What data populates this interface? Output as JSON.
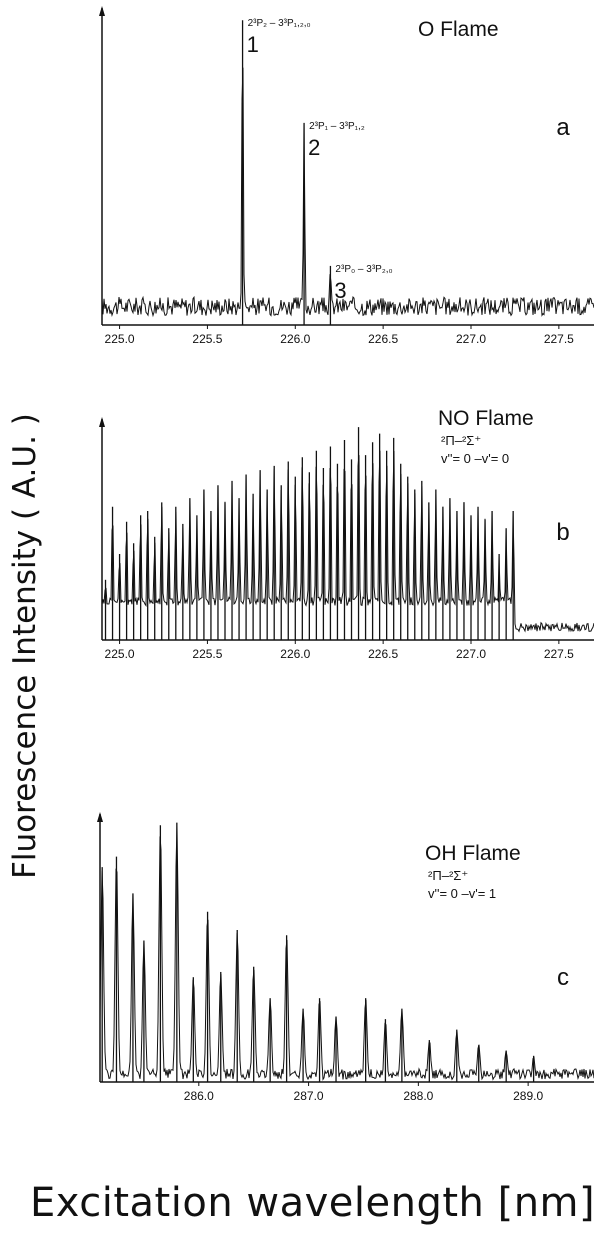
{
  "figure": {
    "ylabel": "Fluorescence Intensity ( A.U. )",
    "xlabel": "Excitation wavelength [nm]"
  },
  "chart_data": [
    {
      "type": "line",
      "panel_label": "a",
      "title": "O Flame",
      "annotation_lines": [],
      "xlim": [
        224.9,
        227.7
      ],
      "ylim": [
        0,
        100
      ],
      "x_ticks": [
        "225.0",
        "225.5",
        "226.0",
        "226.5",
        "227.0",
        "227.5"
      ],
      "baseline": 6,
      "noise": 3,
      "peaks": [
        {
          "x": 225.7,
          "y": 98,
          "label": "1",
          "assignment": "2³P₂ – 3³P₁,₂,₀"
        },
        {
          "x": 226.05,
          "y": 65,
          "label": "2",
          "assignment": "2³P₁ – 3³P₁,₂"
        },
        {
          "x": 226.2,
          "y": 19,
          "label": "3",
          "assignment": "2³P₀ – 3³P₂,₀"
        }
      ]
    },
    {
      "type": "line",
      "panel_label": "b",
      "title": "NO Flame",
      "annotation_lines": [
        "²Π–²Σ⁺",
        "v''= 0 –v'= 0"
      ],
      "xlim": [
        224.9,
        227.7
      ],
      "ylim": [
        0,
        100
      ],
      "x_ticks": [
        "225.0",
        "225.5",
        "226.0",
        "226.5",
        "227.0",
        "227.5"
      ],
      "baseline": 6,
      "noise": 2,
      "band_edge": 227.25,
      "peaks": [
        {
          "x": 224.92,
          "y": 28
        },
        {
          "x": 224.96,
          "y": 62
        },
        {
          "x": 225.0,
          "y": 40
        },
        {
          "x": 225.04,
          "y": 55
        },
        {
          "x": 225.08,
          "y": 45
        },
        {
          "x": 225.12,
          "y": 58
        },
        {
          "x": 225.16,
          "y": 60
        },
        {
          "x": 225.2,
          "y": 48
        },
        {
          "x": 225.24,
          "y": 64
        },
        {
          "x": 225.28,
          "y": 52
        },
        {
          "x": 225.32,
          "y": 62
        },
        {
          "x": 225.36,
          "y": 54
        },
        {
          "x": 225.4,
          "y": 66
        },
        {
          "x": 225.44,
          "y": 58
        },
        {
          "x": 225.48,
          "y": 70
        },
        {
          "x": 225.52,
          "y": 60
        },
        {
          "x": 225.56,
          "y": 72
        },
        {
          "x": 225.6,
          "y": 64
        },
        {
          "x": 225.64,
          "y": 74
        },
        {
          "x": 225.68,
          "y": 66
        },
        {
          "x": 225.72,
          "y": 77
        },
        {
          "x": 225.76,
          "y": 68
        },
        {
          "x": 225.8,
          "y": 79
        },
        {
          "x": 225.84,
          "y": 70
        },
        {
          "x": 225.88,
          "y": 81
        },
        {
          "x": 225.92,
          "y": 72
        },
        {
          "x": 225.96,
          "y": 83
        },
        {
          "x": 226.0,
          "y": 76
        },
        {
          "x": 226.04,
          "y": 85
        },
        {
          "x": 226.08,
          "y": 78
        },
        {
          "x": 226.12,
          "y": 88
        },
        {
          "x": 226.16,
          "y": 80
        },
        {
          "x": 226.2,
          "y": 90
        },
        {
          "x": 226.24,
          "y": 82
        },
        {
          "x": 226.28,
          "y": 93
        },
        {
          "x": 226.32,
          "y": 84
        },
        {
          "x": 226.36,
          "y": 99
        },
        {
          "x": 226.4,
          "y": 86
        },
        {
          "x": 226.44,
          "y": 92
        },
        {
          "x": 226.48,
          "y": 96
        },
        {
          "x": 226.52,
          "y": 88
        },
        {
          "x": 226.56,
          "y": 94
        },
        {
          "x": 226.6,
          "y": 82
        },
        {
          "x": 226.64,
          "y": 76
        },
        {
          "x": 226.68,
          "y": 70
        },
        {
          "x": 226.72,
          "y": 74
        },
        {
          "x": 226.76,
          "y": 64
        },
        {
          "x": 226.8,
          "y": 70
        },
        {
          "x": 226.84,
          "y": 62
        },
        {
          "x": 226.88,
          "y": 66
        },
        {
          "x": 226.92,
          "y": 60
        },
        {
          "x": 226.96,
          "y": 64
        },
        {
          "x": 227.0,
          "y": 58
        },
        {
          "x": 227.04,
          "y": 62
        },
        {
          "x": 227.08,
          "y": 56
        },
        {
          "x": 227.12,
          "y": 60
        },
        {
          "x": 227.16,
          "y": 40
        },
        {
          "x": 227.2,
          "y": 52
        },
        {
          "x": 227.24,
          "y": 60
        }
      ]
    },
    {
      "type": "line",
      "panel_label": "c",
      "title": "OH Flame",
      "annotation_lines": [
        "²Π–²Σ⁺",
        "v''= 0 –v'= 1"
      ],
      "xlim": [
        285.1,
        289.6
      ],
      "ylim": [
        0,
        100
      ],
      "x_ticks": [
        "286.0",
        "287.0",
        "288.0",
        "289.0"
      ],
      "baseline": 3,
      "noise": 2,
      "peaks": [
        {
          "x": 285.12,
          "y": 82
        },
        {
          "x": 285.25,
          "y": 86
        },
        {
          "x": 285.4,
          "y": 72
        },
        {
          "x": 285.5,
          "y": 54
        },
        {
          "x": 285.65,
          "y": 98
        },
        {
          "x": 285.8,
          "y": 99
        },
        {
          "x": 285.95,
          "y": 40
        },
        {
          "x": 286.08,
          "y": 65
        },
        {
          "x": 286.2,
          "y": 42
        },
        {
          "x": 286.35,
          "y": 58
        },
        {
          "x": 286.5,
          "y": 44
        },
        {
          "x": 286.65,
          "y": 32
        },
        {
          "x": 286.8,
          "y": 56
        },
        {
          "x": 286.95,
          "y": 28
        },
        {
          "x": 287.1,
          "y": 32
        },
        {
          "x": 287.25,
          "y": 25
        },
        {
          "x": 287.52,
          "y": 32
        },
        {
          "x": 287.7,
          "y": 24
        },
        {
          "x": 287.85,
          "y": 28
        },
        {
          "x": 288.1,
          "y": 16
        },
        {
          "x": 288.35,
          "y": 20
        },
        {
          "x": 288.55,
          "y": 14
        },
        {
          "x": 288.8,
          "y": 12
        },
        {
          "x": 289.05,
          "y": 10
        }
      ]
    }
  ]
}
